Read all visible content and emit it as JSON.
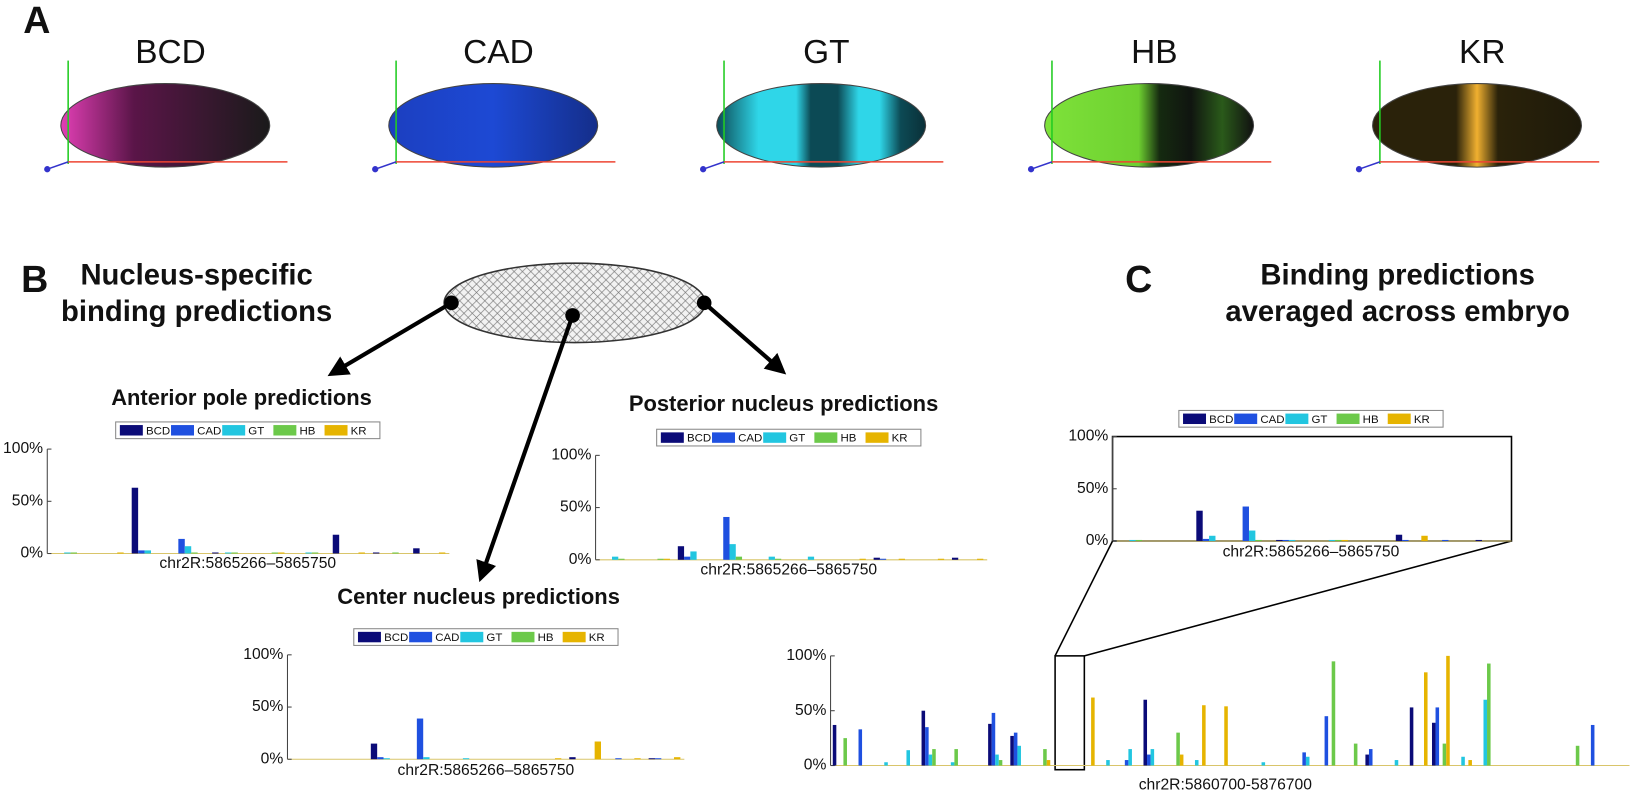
{
  "panels": {
    "a": "A",
    "b": "B",
    "c": "C"
  },
  "embryos": [
    "BCD",
    "CAD",
    "GT",
    "HB",
    "KR"
  ],
  "b_title": [
    "Nucleus-specific",
    "binding predictions"
  ],
  "c_title": [
    "Binding predictions",
    "averaged across embryo"
  ],
  "chart_data": [
    {
      "type": "bar",
      "title": "Anterior pole predictions",
      "xlabel": "chr2R:5865266–5865750",
      "legend": true,
      "categories": [
        null,
        null,
        null,
        null,
        null,
        null,
        null,
        null,
        null,
        null
      ],
      "ylim": [
        0,
        100
      ],
      "yticks": [
        {
          "value": 0,
          "label": "0%"
        },
        {
          "value": 50,
          "label": "50%"
        },
        {
          "value": 100,
          "label": "100%"
        }
      ],
      "series": [
        {
          "name": "BCD",
          "color": "#0b0b78",
          "values": [
            0,
            0,
            63,
            0,
            1,
            0,
            0,
            18,
            1,
            5
          ]
        },
        {
          "name": "CAD",
          "color": "#1f50e0",
          "values": [
            0,
            0,
            3,
            14,
            0,
            0,
            0,
            0,
            0,
            0
          ]
        },
        {
          "name": "GT",
          "color": "#22c6e0",
          "values": [
            1,
            0,
            3,
            7,
            1,
            0,
            1,
            0,
            0,
            0
          ]
        },
        {
          "name": "HB",
          "color": "#6cc94a",
          "values": [
            1,
            0,
            0,
            1,
            1,
            1,
            1,
            0,
            1,
            0
          ]
        },
        {
          "name": "KR",
          "color": "#e6b400",
          "values": [
            0,
            1,
            0,
            0,
            0,
            1,
            0,
            1,
            0,
            1
          ]
        }
      ]
    },
    {
      "type": "bar",
      "title": "Posterior nucleus predictions",
      "xlabel": "chr2R:5865266–5865750",
      "legend": true,
      "categories": [
        null,
        null,
        null,
        null,
        null,
        null,
        null,
        null,
        null,
        null
      ],
      "ylim": [
        0,
        100
      ],
      "yticks": [
        {
          "value": 0,
          "label": "0%"
        },
        {
          "value": 50,
          "label": "50%"
        },
        {
          "value": 100,
          "label": "100%"
        }
      ],
      "series": [
        {
          "name": "BCD",
          "color": "#0b0b78",
          "values": [
            0,
            0,
            13,
            0,
            0,
            0,
            0,
            2,
            0,
            2
          ]
        },
        {
          "name": "CAD",
          "color": "#1f50e0",
          "values": [
            0,
            0,
            3,
            41,
            0,
            0,
            0,
            1,
            0,
            0
          ]
        },
        {
          "name": "GT",
          "color": "#22c6e0",
          "values": [
            3,
            0,
            8,
            15,
            3,
            3,
            0,
            0,
            0,
            0
          ]
        },
        {
          "name": "HB",
          "color": "#6cc94a",
          "values": [
            1,
            1,
            0,
            3,
            1,
            0,
            0,
            0,
            0,
            0
          ]
        },
        {
          "name": "KR",
          "color": "#e6b400",
          "values": [
            0,
            1,
            0,
            0,
            0,
            0,
            1,
            1,
            1,
            1
          ]
        }
      ]
    },
    {
      "type": "bar",
      "title": "Center nucleus predictions",
      "xlabel": "chr2R:5865266–5865750",
      "legend": true,
      "categories": [
        null,
        null,
        null,
        null,
        null,
        null,
        null,
        null,
        null,
        null
      ],
      "ylim": [
        0,
        100
      ],
      "yticks": [
        {
          "value": 0,
          "label": "0%"
        },
        {
          "value": 50,
          "label": "50%"
        },
        {
          "value": 100,
          "label": "100%"
        }
      ],
      "series": [
        {
          "name": "BCD",
          "color": "#0b0b78",
          "values": [
            0,
            0,
            15,
            0,
            0,
            0,
            0,
            2,
            0,
            1
          ]
        },
        {
          "name": "CAD",
          "color": "#1f50e0",
          "values": [
            0,
            0,
            2,
            39,
            0,
            0,
            0,
            0,
            1,
            1
          ]
        },
        {
          "name": "GT",
          "color": "#22c6e0",
          "values": [
            0,
            0,
            1,
            2,
            1,
            0,
            0,
            0,
            0,
            0
          ]
        },
        {
          "name": "HB",
          "color": "#6cc94a",
          "values": [
            0,
            0,
            0,
            0,
            0,
            0,
            0,
            0,
            0,
            0
          ]
        },
        {
          "name": "KR",
          "color": "#e6b400",
          "values": [
            0,
            0,
            0,
            0,
            0,
            0,
            1,
            17,
            1,
            2
          ]
        }
      ]
    },
    {
      "type": "bar",
      "xlabel": "chr2R:5865266–5865750",
      "legend": true,
      "frame": true,
      "categories": [
        null,
        null,
        null,
        null,
        null,
        null,
        null,
        null,
        null,
        null
      ],
      "ylim": [
        0,
        100
      ],
      "yticks": [
        {
          "value": 0,
          "label": "0%"
        },
        {
          "value": 50,
          "label": "50%"
        },
        {
          "value": 100,
          "label": "100%"
        }
      ],
      "series": [
        {
          "name": "BCD",
          "color": "#0b0b78",
          "values": [
            0,
            0,
            29,
            0,
            1,
            0,
            0,
            6,
            0,
            1
          ]
        },
        {
          "name": "CAD",
          "color": "#1f50e0",
          "values": [
            0,
            0,
            2,
            33,
            1,
            0,
            0,
            1,
            1,
            0
          ]
        },
        {
          "name": "GT",
          "color": "#22c6e0",
          "values": [
            1,
            0,
            5,
            10,
            1,
            1,
            0,
            0,
            0,
            0
          ]
        },
        {
          "name": "HB",
          "color": "#6cc94a",
          "values": [
            1,
            0,
            0,
            1,
            0,
            1,
            0,
            0,
            0,
            0
          ]
        },
        {
          "name": "KR",
          "color": "#e6b400",
          "values": [
            0,
            0,
            0,
            0,
            0,
            1,
            0,
            5,
            0,
            0
          ]
        }
      ]
    },
    {
      "type": "bar",
      "xlabel": "chr2R:5860700-5876700",
      "legend": false,
      "categories": [
        null,
        null,
        null,
        null,
        null,
        null,
        null,
        null,
        null,
        null,
        null,
        null,
        null,
        null,
        null,
        null,
        null,
        null,
        null,
        null,
        null,
        null,
        null,
        null,
        null,
        null,
        null,
        null,
        null,
        null,
        null,
        null,
        null,
        null,
        null,
        null
      ],
      "ylim": [
        0,
        100
      ],
      "yticks": [
        {
          "value": 0,
          "label": "0%"
        },
        {
          "value": 50,
          "label": "50%"
        },
        {
          "value": 100,
          "label": "100%"
        }
      ],
      "series": [
        {
          "name": "BCD",
          "color": "#0b0b78",
          "values": [
            37,
            0,
            0,
            0,
            50,
            0,
            0,
            38,
            27,
            0,
            0,
            0,
            0,
            0,
            60,
            0,
            0,
            0,
            0,
            0,
            0,
            0,
            0,
            0,
            10,
            0,
            53,
            39,
            0,
            0,
            0,
            0,
            0,
            0,
            0,
            0
          ]
        },
        {
          "name": "CAD",
          "color": "#1f50e0",
          "values": [
            0,
            33,
            0,
            0,
            35,
            0,
            0,
            48,
            30,
            0,
            0,
            0,
            0,
            5,
            10,
            0,
            0,
            0,
            0,
            0,
            0,
            12,
            45,
            0,
            15,
            0,
            0,
            53,
            0,
            0,
            0,
            0,
            0,
            0,
            37,
            0
          ]
        },
        {
          "name": "GT",
          "color": "#22c6e0",
          "values": [
            0,
            0,
            3,
            14,
            10,
            3,
            0,
            10,
            18,
            0,
            0,
            0,
            5,
            15,
            15,
            0,
            5,
            0,
            0,
            3,
            0,
            8,
            0,
            0,
            0,
            5,
            0,
            0,
            8,
            60,
            0,
            0,
            0,
            0,
            0,
            0
          ]
        },
        {
          "name": "HB",
          "color": "#6cc94a",
          "values": [
            25,
            0,
            0,
            0,
            15,
            15,
            0,
            5,
            0,
            15,
            0,
            0,
            0,
            0,
            0,
            30,
            0,
            0,
            0,
            0,
            0,
            0,
            95,
            20,
            0,
            0,
            0,
            20,
            0,
            93,
            0,
            0,
            0,
            18,
            0,
            0
          ]
        },
        {
          "name": "KR",
          "color": "#e6b400",
          "values": [
            0,
            0,
            0,
            0,
            0,
            0,
            0,
            0,
            0,
            5,
            0,
            62,
            0,
            0,
            0,
            10,
            55,
            54,
            0,
            0,
            0,
            0,
            0,
            0,
            0,
            0,
            85,
            100,
            5,
            0,
            0,
            0,
            0,
            0,
            0,
            0
          ]
        }
      ]
    }
  ]
}
